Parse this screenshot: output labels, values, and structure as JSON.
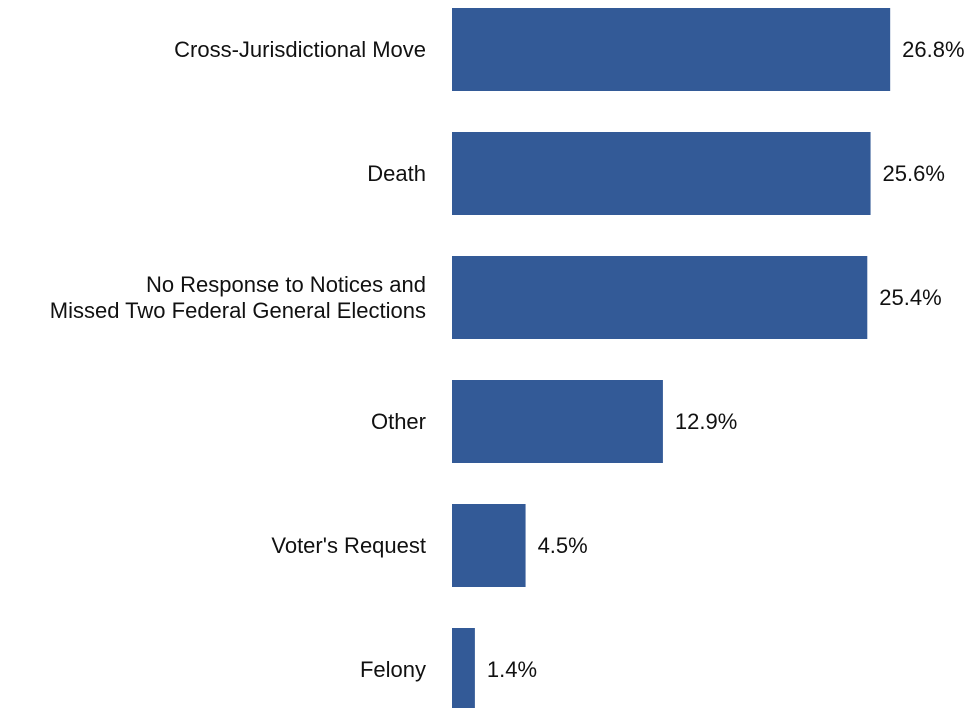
{
  "chart_data": {
    "type": "bar",
    "orientation": "horizontal",
    "categories": [
      [
        "Cross-Jurisdictional Move"
      ],
      [
        "Death"
      ],
      [
        "No Response to Notices and",
        "Missed Two Federal General Elections"
      ],
      [
        "Other"
      ],
      [
        "Voter's Request"
      ],
      [
        "Felony"
      ]
    ],
    "values": [
      26.8,
      25.6,
      25.4,
      12.9,
      4.5,
      1.4
    ],
    "value_labels": [
      "26.8%",
      "25.6%",
      "25.4%",
      "12.9%",
      "4.5%",
      "1.4%"
    ],
    "xlim": [
      0,
      26.8
    ],
    "grid": false,
    "legend": "none",
    "bar_color": "#335a97"
  }
}
